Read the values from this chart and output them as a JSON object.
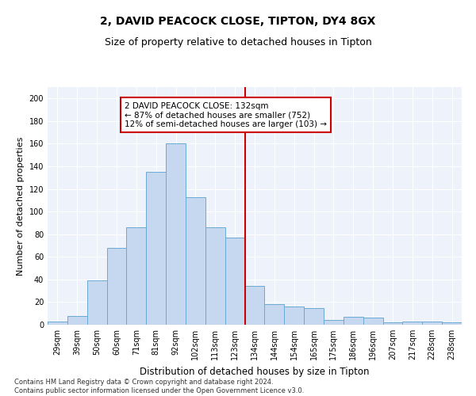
{
  "title1": "2, DAVID PEACOCK CLOSE, TIPTON, DY4 8GX",
  "title2": "Size of property relative to detached houses in Tipton",
  "xlabel": "Distribution of detached houses by size in Tipton",
  "ylabel": "Number of detached properties",
  "footnote": "Contains HM Land Registry data © Crown copyright and database right 2024.\nContains public sector information licensed under the Open Government Licence v3.0.",
  "bins": [
    "29sqm",
    "39sqm",
    "50sqm",
    "60sqm",
    "71sqm",
    "81sqm",
    "92sqm",
    "102sqm",
    "113sqm",
    "123sqm",
    "134sqm",
    "144sqm",
    "154sqm",
    "165sqm",
    "175sqm",
    "186sqm",
    "196sqm",
    "207sqm",
    "217sqm",
    "228sqm",
    "238sqm"
  ],
  "values": [
    3,
    8,
    39,
    68,
    86,
    135,
    160,
    113,
    86,
    77,
    34,
    18,
    16,
    15,
    4,
    7,
    6,
    2,
    3,
    3,
    2
  ],
  "bar_color": "#c5d8f0",
  "bar_edge_color": "#6aaad4",
  "vline_color": "#cc0000",
  "vline_x_index": 9.5,
  "annotation_text": "2 DAVID PEACOCK CLOSE: 132sqm\n← 87% of detached houses are smaller (752)\n12% of semi-detached houses are larger (103) →",
  "ylim": [
    0,
    210
  ],
  "yticks": [
    0,
    20,
    40,
    60,
    80,
    100,
    120,
    140,
    160,
    180,
    200
  ],
  "background_color": "#eef2fb",
  "grid_color": "#ffffff",
  "title1_fontsize": 10,
  "title2_fontsize": 9,
  "xlabel_fontsize": 8.5,
  "ylabel_fontsize": 8,
  "tick_fontsize": 7,
  "annotation_fontsize": 7.5,
  "footnote_fontsize": 6
}
